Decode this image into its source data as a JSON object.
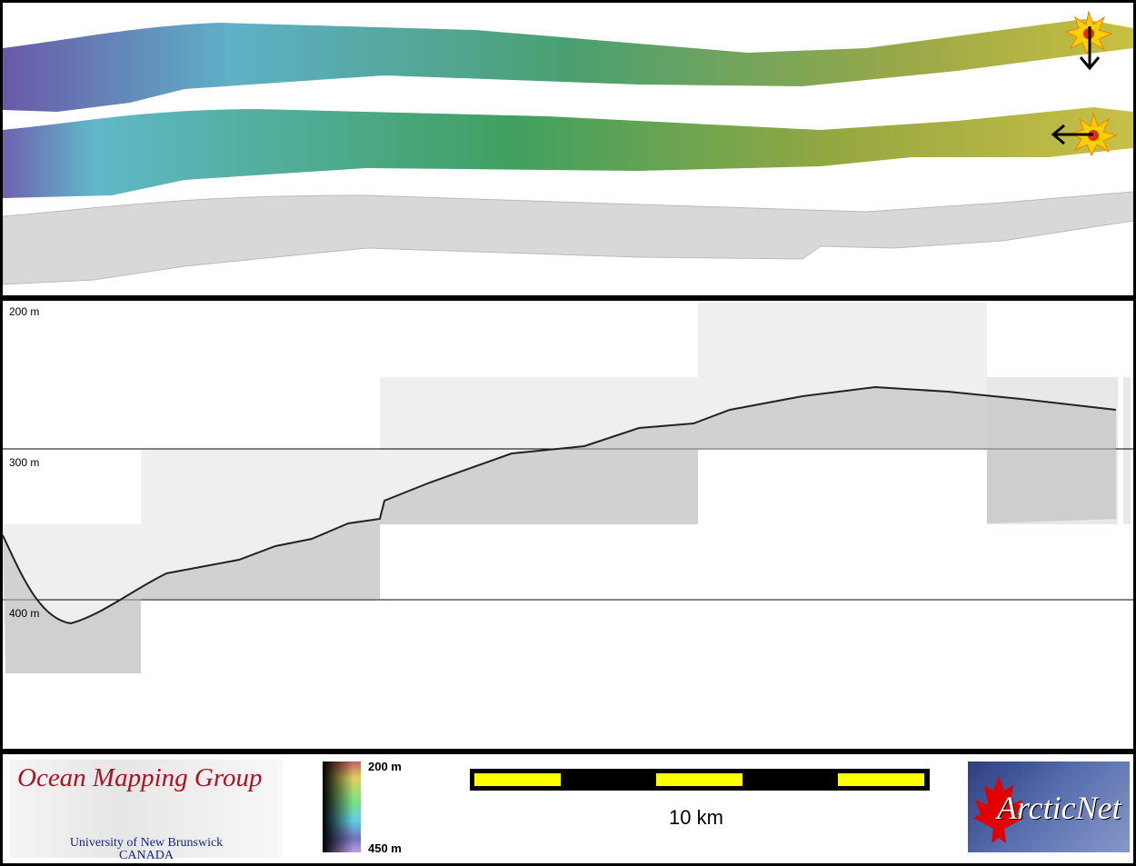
{
  "profile": {
    "depth_labels": [
      "200 m",
      "300 m",
      "400 m"
    ]
  },
  "legend": {
    "logo_title": "Ocean Mapping Group",
    "logo_sub1": "University of New Brunswick",
    "logo_sub2": "CANADA",
    "colorbar_top": "200 m",
    "colorbar_bottom": "450 m",
    "scale_label": "10 km",
    "partner_logo": "ArcticNet"
  },
  "icons": {
    "marker": "starburst-icon",
    "arrow_down": "arrow-down-icon",
    "arrow_left": "arrow-left-icon"
  },
  "colors": {
    "scale_yellow": "#ffff00",
    "logo_red": "#b01020"
  }
}
